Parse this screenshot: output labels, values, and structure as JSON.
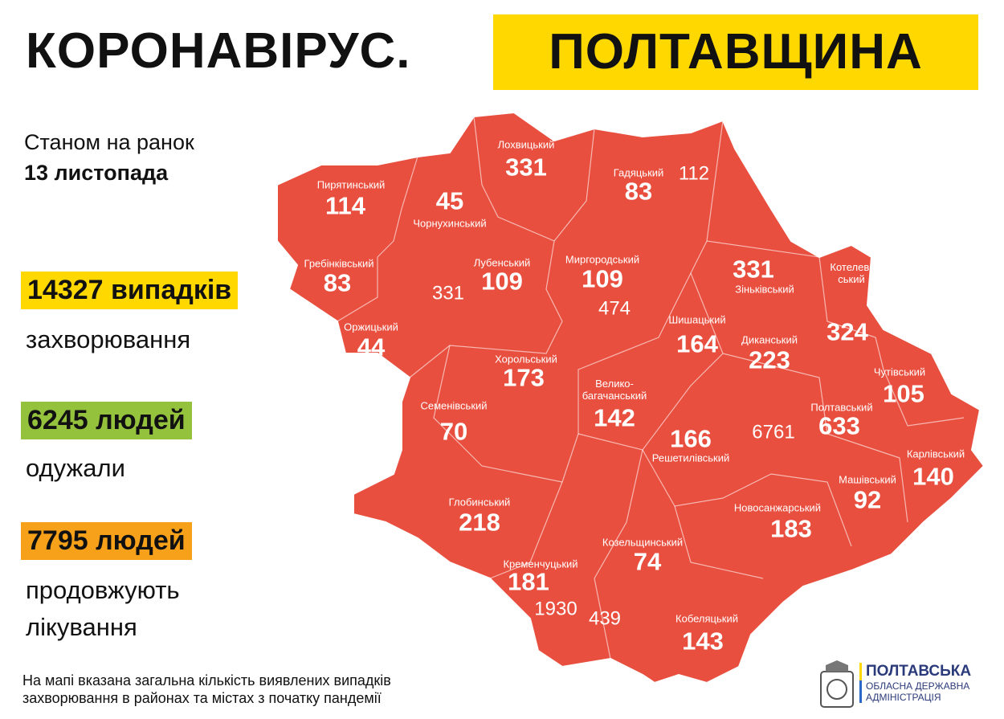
{
  "header": {
    "title": "КОРОНАВІРУС.",
    "highlight": "ПОЛТАВЩИНА"
  },
  "date": {
    "line1": "Станом на ранок",
    "line2": "13 листопада"
  },
  "stats": [
    {
      "value": "14327 випадків",
      "caption": [
        "захворювання"
      ],
      "color": "#ffd800"
    },
    {
      "value": "6245 людей",
      "caption": [
        "одужали"
      ],
      "color": "#95c23d"
    },
    {
      "value": "7795 людей",
      "caption": [
        "продовжують",
        "лікування"
      ],
      "color": "#f7a11a"
    }
  ],
  "map": {
    "color": "#e94f3f",
    "districts": [
      {
        "name": "Лохвицький",
        "value": 331
      },
      {
        "name": "Гадяцький",
        "value": 83
      },
      {
        "name": "Пирятинський",
        "value": 114
      },
      {
        "name": "Чорнухинський",
        "value": 45
      },
      {
        "name": "Гребінківський",
        "value": 83
      },
      {
        "name": "Лубенський",
        "value": 109
      },
      {
        "name": "Миргородський",
        "value": 109
      },
      {
        "name": "Зіньківський",
        "value": 331
      },
      {
        "name": "Котелев-\nський",
        "value": 324
      },
      {
        "name": "Оржицький",
        "value": 44
      },
      {
        "name": "Шишацький",
        "value": 164
      },
      {
        "name": "Диканський",
        "value": 223
      },
      {
        "name": "Хорольський",
        "value": 173
      },
      {
        "name": "Чутівський",
        "value": 105
      },
      {
        "name": "Велико-\nбагачанський",
        "value": 142
      },
      {
        "name": "Семенівський",
        "value": 70
      },
      {
        "name": "Полтавський",
        "value": 633
      },
      {
        "name": "Решетилівський",
        "value": 166
      },
      {
        "name": "Карлівський",
        "value": 140
      },
      {
        "name": "Машівський",
        "value": 92
      },
      {
        "name": "Глобинський",
        "value": 218
      },
      {
        "name": "Новосанжарський",
        "value": 183
      },
      {
        "name": "Козельщинський",
        "value": 74
      },
      {
        "name": "Кременчуцький",
        "value": 181
      },
      {
        "name": "Кобеляцький",
        "value": 143
      }
    ],
    "cities": [
      {
        "value": 112
      },
      {
        "value": 331
      },
      {
        "value": 474
      },
      {
        "value": 6761
      },
      {
        "value": 1930
      },
      {
        "value": 439
      }
    ]
  },
  "footer": {
    "note": [
      "На мапі вказана загальна кількість виявлених випадків",
      "захворювання в районах та містах з початку пандемії"
    ]
  },
  "logo": {
    "name": "ПОЛТАВСЬКА",
    "line1": "ОБЛАСНА ДЕРЖАВНА",
    "line2": "АДМІНІСТРАЦІЯ"
  }
}
